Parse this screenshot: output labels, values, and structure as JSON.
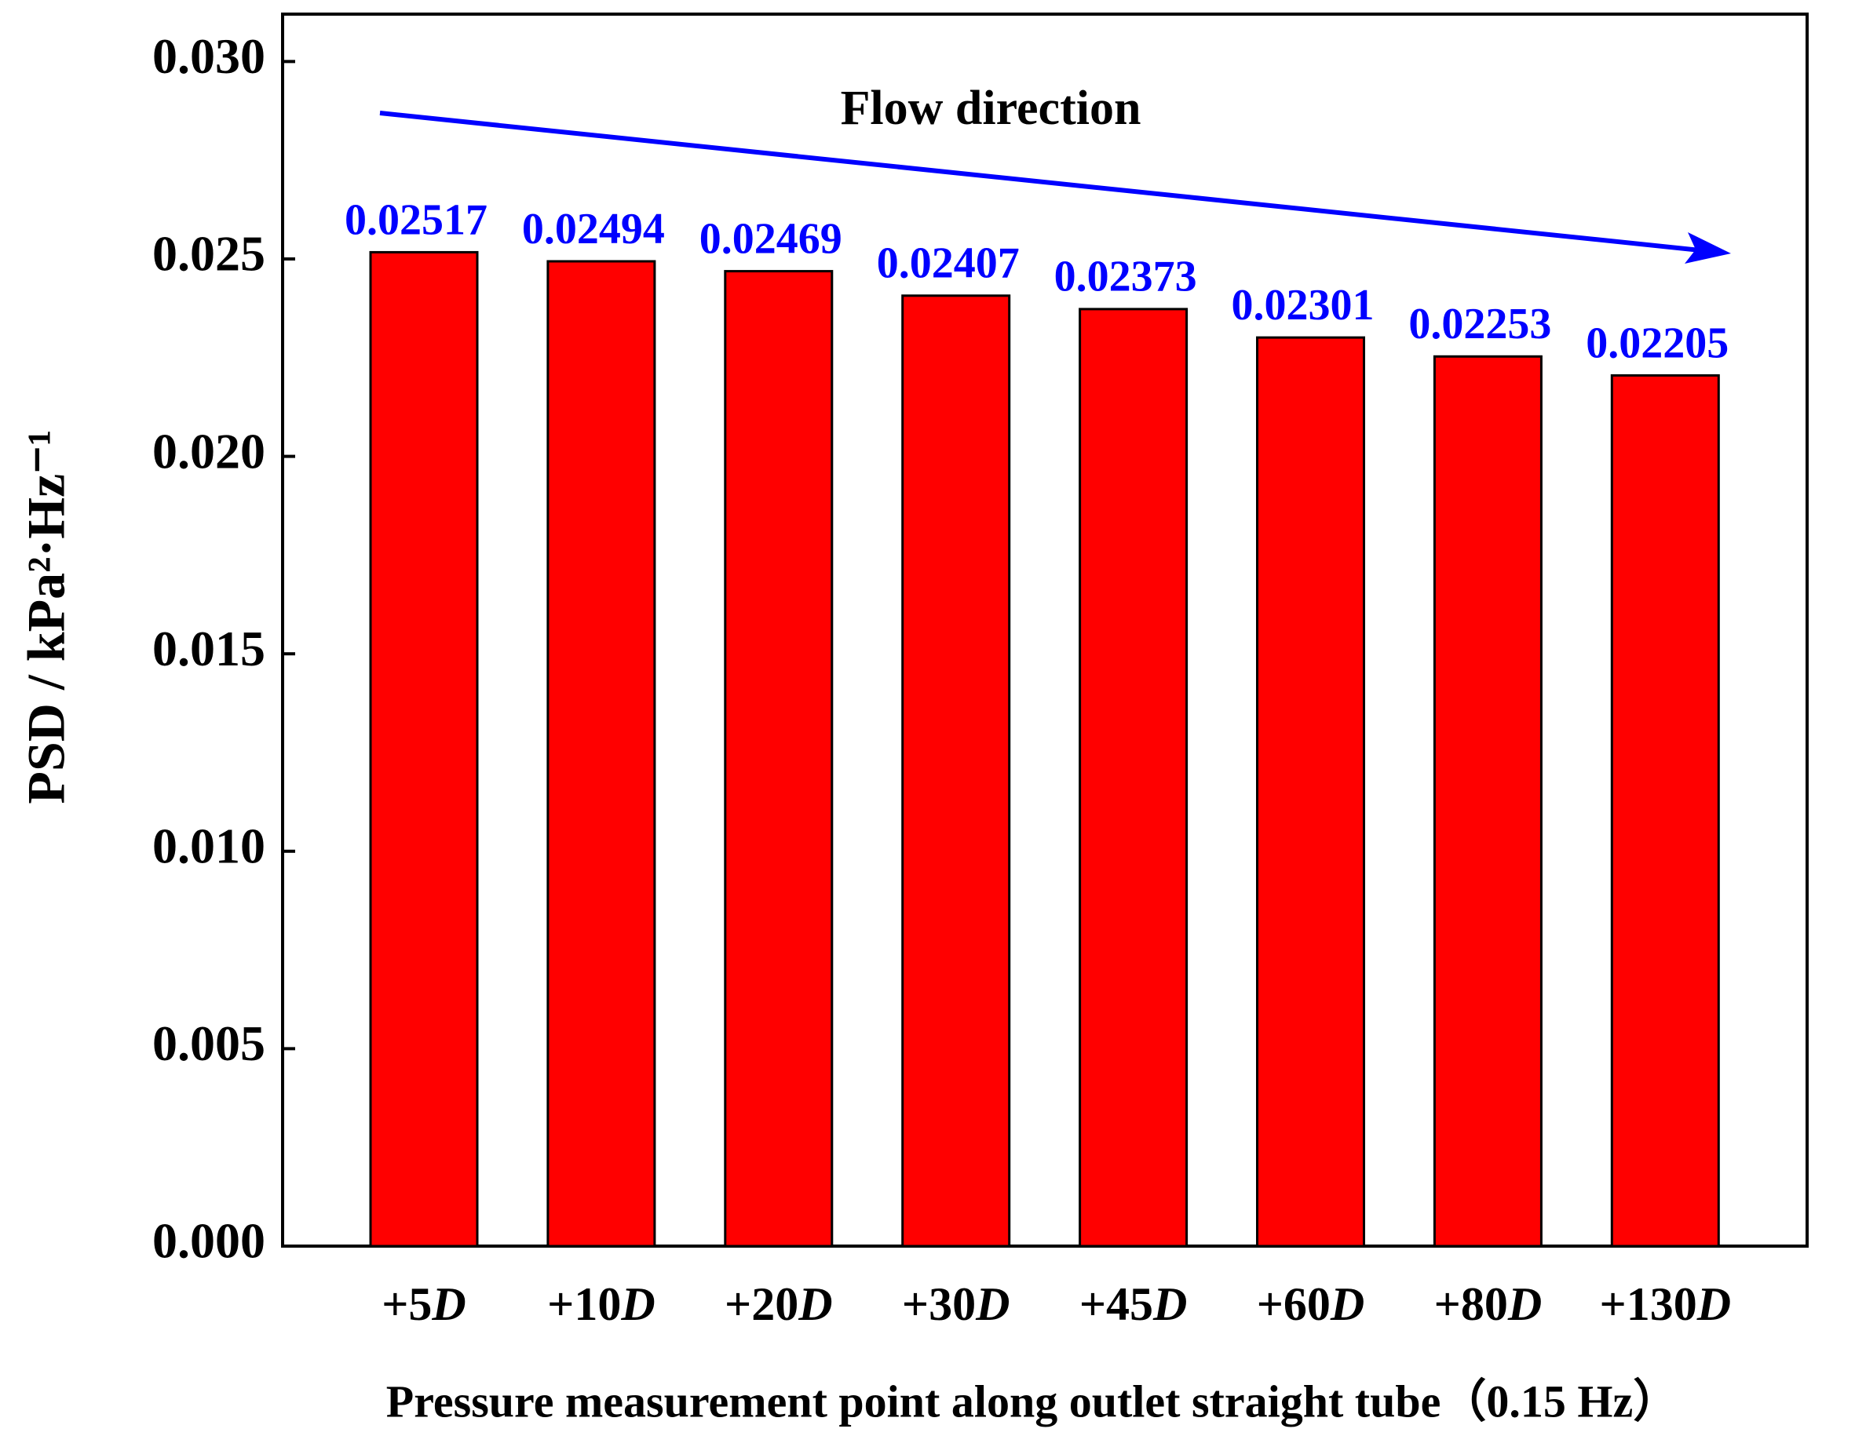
{
  "chart_data": {
    "type": "bar",
    "x_label": "Pressure measurement point along outlet straight tube（0.15 Hz）",
    "y_label": "PSD / kPa²·Hz⁻¹",
    "annotation": "Flow direction",
    "categories": [
      "+5D",
      "+10D",
      "+20D",
      "+30D",
      "+45D",
      "+60D",
      "+80D",
      "+130D"
    ],
    "values": [
      0.02517,
      0.02494,
      0.02469,
      0.02407,
      0.02373,
      0.02301,
      0.02253,
      0.02205
    ],
    "color": "#ff0000",
    "label_color": "#0000ff",
    "ylim": [
      0,
      0.0312
    ],
    "yticks": [
      {
        "value": 0,
        "label": "0.000"
      },
      0.005,
      {
        "value": 0.01,
        "label": "0.010"
      },
      0.015,
      {
        "value": 0.02,
        "label": "0.020"
      },
      0.025,
      {
        "value": 0.03,
        "label": "0.030"
      }
    ],
    "grid": false
  }
}
